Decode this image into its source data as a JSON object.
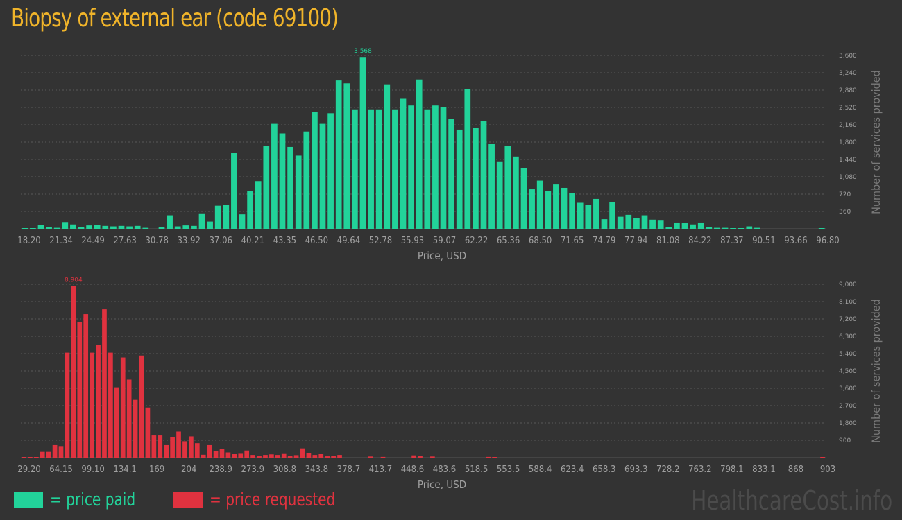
{
  "title": "Biopsy of external ear (code 69100)",
  "legend": {
    "paid_label": "= price paid",
    "requested_label": "= price requested",
    "paid_color": "#22d39a",
    "requested_color": "#e0323f"
  },
  "watermark": "HealthcareCost.info",
  "chart_data": [
    {
      "type": "bar",
      "name": "price-paid",
      "color": "#22d39a",
      "xlabel": "Price, USD",
      "ylabel": "Number of services provided",
      "ylim": [
        0,
        3600
      ],
      "yticks": [
        "360",
        "720",
        "1,080",
        "1,440",
        "1,800",
        "2,160",
        "2,520",
        "2,880",
        "3,240",
        "3,600"
      ],
      "xticks": [
        "18.20",
        "21.34",
        "24.49",
        "27.63",
        "30.78",
        "33.92",
        "37.06",
        "40.21",
        "43.35",
        "46.50",
        "49.64",
        "52.78",
        "55.93",
        "59.07",
        "62.22",
        "65.36",
        "68.50",
        "71.65",
        "74.79",
        "77.94",
        "81.08",
        "84.22",
        "87.37",
        "90.51",
        "93.66",
        "96.80"
      ],
      "peak_label": "3,568",
      "values": [
        10,
        12,
        80,
        40,
        20,
        140,
        90,
        40,
        70,
        80,
        60,
        50,
        60,
        50,
        60,
        20,
        0,
        40,
        280,
        50,
        70,
        60,
        320,
        150,
        480,
        500,
        1580,
        300,
        790,
        990,
        1720,
        2180,
        1980,
        1700,
        1520,
        2020,
        2420,
        2180,
        2400,
        3080,
        3020,
        2480,
        3568,
        2480,
        2480,
        3000,
        2480,
        2700,
        2560,
        3100,
        2480,
        2560,
        2520,
        2280,
        2060,
        2900,
        2100,
        2240,
        1760,
        1400,
        1720,
        1500,
        1260,
        820,
        1000,
        780,
        920,
        850,
        740,
        540,
        500,
        620,
        200,
        550,
        250,
        290,
        230,
        280,
        190,
        170,
        30,
        130,
        120,
        90,
        130,
        30,
        20,
        20,
        10,
        10,
        50,
        20,
        0,
        0,
        0,
        0,
        0,
        0,
        0,
        10
      ]
    },
    {
      "type": "bar",
      "name": "price-requested",
      "color": "#e0323f",
      "xlabel": "Price, USD",
      "ylabel": "Number of services provided",
      "ylim": [
        0,
        9000
      ],
      "yticks": [
        "900",
        "1,800",
        "2,700",
        "3,600",
        "4,500",
        "5,400",
        "6,300",
        "7,200",
        "8,100",
        "9,000"
      ],
      "xticks": [
        "29.20",
        "64.15",
        "99.10",
        "134.1",
        "169",
        "204",
        "238.9",
        "273.9",
        "308.8",
        "343.8",
        "378.7",
        "413.7",
        "448.6",
        "483.6",
        "518.5",
        "553.5",
        "588.4",
        "623.4",
        "658.3",
        "693.3",
        "728.2",
        "763.2",
        "798.1",
        "833.1",
        "868",
        "903"
      ],
      "peak_label": "8,904",
      "values": [
        30,
        30,
        30,
        300,
        300,
        650,
        600,
        5450,
        8904,
        7050,
        7450,
        5450,
        5850,
        7700,
        5450,
        3650,
        5200,
        4050,
        3000,
        5300,
        2600,
        1150,
        1150,
        650,
        1050,
        1350,
        850,
        1100,
        750,
        150,
        650,
        350,
        450,
        270,
        180,
        200,
        370,
        140,
        80,
        140,
        170,
        140,
        190,
        90,
        130,
        480,
        240,
        140,
        180,
        70,
        80,
        140,
        0,
        0,
        0,
        0,
        60,
        0,
        40,
        0,
        0,
        0,
        0,
        120,
        80,
        0,
        60,
        0,
        0,
        0,
        0,
        0,
        0,
        0,
        0,
        40,
        30,
        0,
        0,
        0,
        0,
        0,
        0,
        0,
        0,
        0,
        0,
        0,
        0,
        0,
        0,
        0,
        0,
        0,
        0,
        0,
        0,
        0,
        0,
        0,
        0,
        0,
        0,
        0,
        0,
        0,
        0,
        0,
        0,
        0,
        0,
        0,
        0,
        0,
        0,
        0,
        0,
        0,
        0,
        0,
        0,
        0,
        0,
        0,
        0,
        0,
        0,
        0,
        0,
        20
      ]
    }
  ]
}
